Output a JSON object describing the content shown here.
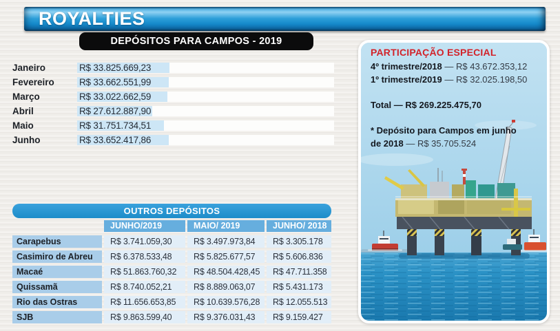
{
  "header": {
    "title": "ROYALTIES"
  },
  "deposits": {
    "title": "DEPÓSITOS PARA CAMPOS - 2019",
    "rows": [
      {
        "month": "Janeiro",
        "value": "R$ 33.825.669,23",
        "amount": 33825669.23
      },
      {
        "month": "Fevereiro",
        "value": "R$ 33.662.551,99",
        "amount": 33662551.99
      },
      {
        "month": "Março",
        "value": "R$ 33.022.662,59",
        "amount": 33022662.59
      },
      {
        "month": "Abril",
        "value": "R$ 27.612.887,90",
        "amount": 27612887.9
      },
      {
        "month": "Maio",
        "value": "R$ 31.751.734,51",
        "amount": 31751734.51
      },
      {
        "month": "Junho",
        "value": "R$ 33.652.417,86",
        "amount": 33652417.86
      }
    ]
  },
  "participacao": {
    "title": "PARTICIPAÇÃO ESPECIAL",
    "lines": [
      {
        "label": "4º trimestre/2018",
        "value": "— R$ 43.672.353,12"
      },
      {
        "label": "1º trimestre/2019",
        "value": "— R$ 32.025.198,50"
      }
    ],
    "total": {
      "label": "Total",
      "value": "— R$ 269.225.475,70"
    },
    "note": {
      "line1": "* Depósito para Campos em junho",
      "line2_label": "de 2018",
      "line2_value": "— R$ 35.705.524"
    }
  },
  "outros": {
    "title": "OUTROS DEPÓSITOS",
    "columns": [
      "JUNHO/2019",
      "MAIO/ 2019",
      "JUNHO/ 2018"
    ],
    "rows": [
      {
        "name": "Carapebus",
        "v1": "R$ 3.741.059,30",
        "v2": "R$ 3.497.973,84",
        "v3": "R$ 3.305.178"
      },
      {
        "name": "Casimiro de Abreu",
        "v1": "R$ 6.378.533,48",
        "v2": "R$ 5.825.677,57",
        "v3": "R$ 5.606.836"
      },
      {
        "name": "Macaé",
        "v1": "R$ 51.863.760,32",
        "v2": "R$ 48.504.428,45",
        "v3": "R$ 47.711.358"
      },
      {
        "name": "Quissamã",
        "v1": "R$ 8.740.052,21",
        "v2": "R$ 8.889.063,07",
        "v3": "R$ 5.431.173"
      },
      {
        "name": "Rio das Ostras",
        "v1": "R$ 11.656.653,85",
        "v2": "R$ 10.639.576,28",
        "v3": "R$ 12.055.513"
      },
      {
        "name": "SJB",
        "v1": "R$ 9.863.599,40",
        "v2": "R$ 9.376.031,43",
        "v3": "R$ 9.159.427"
      }
    ]
  },
  "colors": {
    "banner_blue": "#1e93d2",
    "table_header_blue": "#2b97d5",
    "column_header_blue": "#66aede",
    "label_cell_blue": "#a9cde9",
    "value_cell_blue": "#e2eef8",
    "bar_blue": "#cde6f6",
    "accent_red": "#d2232a",
    "black_box": "#0b0b0c"
  },
  "chart_data": [
    {
      "type": "bar",
      "orientation": "horizontal",
      "title": "DEPÓSITOS PARA CAMPOS - 2019",
      "categories": [
        "Janeiro",
        "Fevereiro",
        "Março",
        "Abril",
        "Maio",
        "Junho"
      ],
      "values": [
        33825669.23,
        33662551.99,
        33022662.59,
        27612887.9,
        31751734.51,
        33652417.86
      ],
      "value_labels": [
        "R$ 33.825.669,23",
        "R$ 33.662.551,99",
        "R$ 33.022.662,59",
        "R$ 27.612.887,90",
        "R$ 31.751.734,51",
        "R$ 33.652.417,86"
      ],
      "unit": "R$"
    },
    {
      "type": "table",
      "title": "OUTROS DEPÓSITOS",
      "columns": [
        "",
        "JUNHO/2019",
        "MAIO/ 2019",
        "JUNHO/ 2018"
      ],
      "rows": [
        [
          "Carapebus",
          "R$ 3.741.059,30",
          "R$ 3.497.973,84",
          "R$ 3.305.178"
        ],
        [
          "Casimiro de Abreu",
          "R$ 6.378.533,48",
          "R$ 5.825.677,57",
          "R$ 5.606.836"
        ],
        [
          "Macaé",
          "R$ 51.863.760,32",
          "R$ 48.504.428,45",
          "R$ 47.711.358"
        ],
        [
          "Quissamã",
          "R$ 8.740.052,21",
          "R$ 8.889.063,07",
          "R$ 5.431.173"
        ],
        [
          "Rio das Ostras",
          "R$ 11.656.653,85",
          "R$ 10.639.576,28",
          "R$ 12.055.513"
        ],
        [
          "SJB",
          "R$ 9.863.599,40",
          "R$ 9.376.031,43",
          "R$ 9.159.427"
        ]
      ]
    },
    {
      "type": "table",
      "title": "PARTICIPAÇÃO ESPECIAL",
      "columns": [
        "",
        ""
      ],
      "rows": [
        [
          "4º trimestre/2018",
          "R$ 43.672.353,12"
        ],
        [
          "1º trimestre/2019",
          "R$ 32.025.198,50"
        ],
        [
          "Total",
          "R$ 269.225.475,70"
        ],
        [
          "* Depósito para Campos em junho de 2018",
          "R$ 35.705.524"
        ]
      ]
    }
  ]
}
